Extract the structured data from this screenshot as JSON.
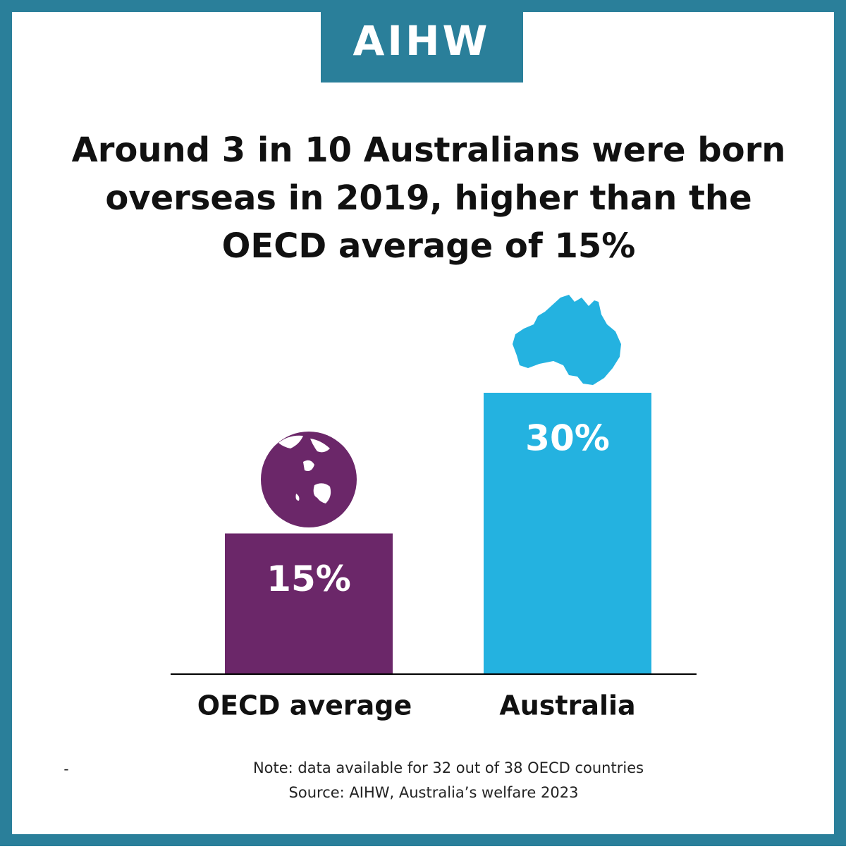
{
  "logo": "AIHW",
  "chart_data": {
    "type": "bar",
    "title": [
      "Around 3 in 10 Australians were born",
      "overseas in 2019, higher than the",
      "OECD average of 15%"
    ],
    "categories": [
      "OECD average",
      "Australia"
    ],
    "values": [
      15,
      30
    ],
    "value_labels": [
      "15%",
      "30%"
    ],
    "colors": [
      "#6b2769",
      "#24b2e0"
    ]
  },
  "dash": "-",
  "note": "Note: data available for 32 out of 38 OECD countries",
  "source": "Source: AIHW, Australia’s welfare 2023"
}
